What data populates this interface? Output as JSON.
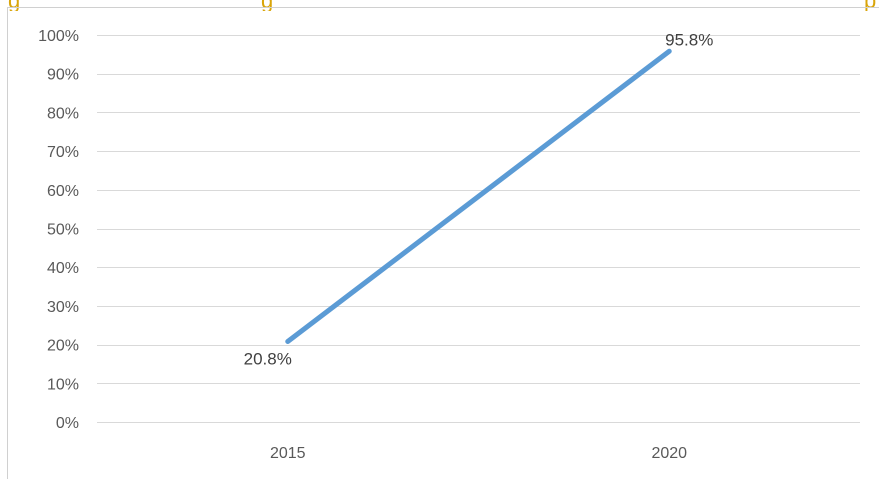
{
  "caption": {
    "left_text": "g",
    "middle_text": "g",
    "right_text": "p"
  },
  "chart_data": {
    "type": "line",
    "categories": [
      "2015",
      "2020"
    ],
    "series": [
      {
        "values": [
          20.8,
          95.8
        ],
        "data_labels": [
          "20.8%",
          "95.8%"
        ],
        "color": "#5b9bd5"
      }
    ],
    "ylim": [
      0,
      100
    ],
    "y_ticks": [
      0,
      10,
      20,
      30,
      40,
      50,
      60,
      70,
      80,
      90,
      100
    ],
    "y_tick_labels": [
      "0%",
      "10%",
      "20%",
      "30%",
      "40%",
      "50%",
      "60%",
      "70%",
      "80%",
      "90%",
      "100%"
    ],
    "grid": true,
    "legend": "none",
    "colors": {
      "gridline": "#d9d9d9",
      "axis_text": "#595959",
      "caption": "#d9a50a",
      "border": "#d0d0d0"
    }
  }
}
